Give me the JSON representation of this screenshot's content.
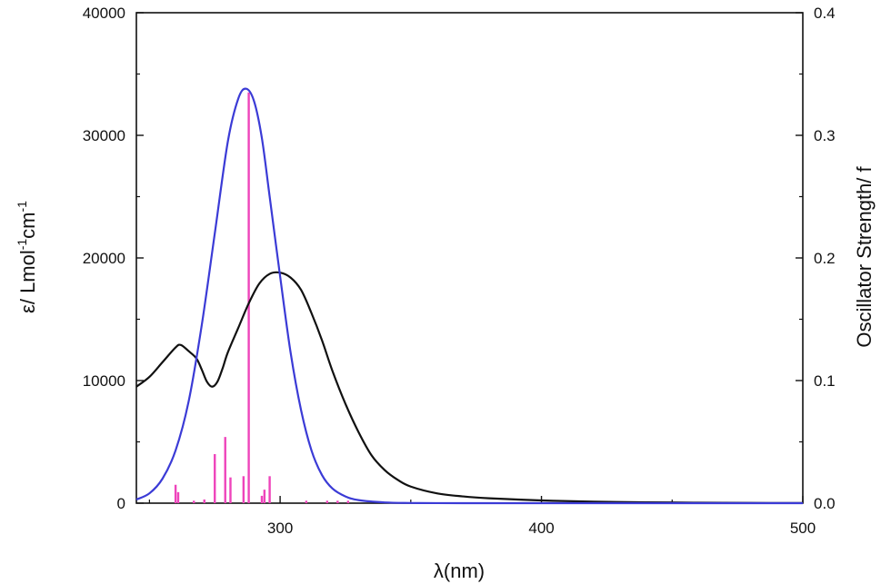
{
  "chart_data": {
    "type": "line",
    "title": "",
    "xlabel": "λ(nm)",
    "ylabel_left": "ε/ Lmol-1cm-1",
    "ylabel_right": "Oscillator Strength/ f",
    "xlim": [
      245,
      500
    ],
    "ylim_left": [
      0,
      40000
    ],
    "ylim_right": [
      0.0,
      0.4
    ],
    "x_ticks": [
      "300",
      "400",
      "500"
    ],
    "y_left_ticks": [
      "0",
      "10000",
      "20000",
      "30000",
      "40000"
    ],
    "y_right_ticks": [
      "0.0",
      "0.1",
      "0.2",
      "0.3",
      "0.4"
    ],
    "grid": false,
    "series": [
      {
        "color": "#111111",
        "axis": "left",
        "x": [
          245,
          250,
          255,
          260,
          262,
          265,
          268,
          270,
          272,
          274,
          276,
          278,
          280,
          284,
          288,
          292,
          296,
          300,
          304,
          308,
          312,
          316,
          320,
          325,
          330,
          335,
          340,
          345,
          350,
          360,
          370,
          380,
          400,
          420,
          440,
          460,
          480,
          500
        ],
        "y": [
          9500,
          10300,
          11500,
          12700,
          12900,
          12400,
          11800,
          10900,
          9900,
          9500,
          9900,
          11000,
          12300,
          14300,
          16300,
          17900,
          18700,
          18800,
          18400,
          17400,
          15500,
          13300,
          10800,
          8100,
          5800,
          3900,
          2700,
          1900,
          1350,
          800,
          550,
          400,
          220,
          120,
          70,
          40,
          20,
          10
        ]
      },
      {
        "color": "#3b3bd6",
        "axis": "left",
        "x": [
          245,
          250,
          255,
          260,
          265,
          270,
          275,
          280,
          284,
          287,
          290,
          293,
          296,
          300,
          304,
          308,
          312,
          316,
          320,
          325,
          330,
          340,
          350,
          360,
          380,
          400,
          450,
          500
        ],
        "y": [
          300,
          800,
          2000,
          4300,
          8300,
          14500,
          22000,
          29500,
          33000,
          33800,
          32800,
          29800,
          25000,
          18500,
          12300,
          7600,
          4300,
          2300,
          1200,
          550,
          250,
          60,
          15,
          5,
          0,
          0,
          0,
          0
        ]
      }
    ],
    "sticks": {
      "color": "#ee44bb",
      "axis": "right",
      "x": [
        260,
        261,
        267,
        271,
        275,
        279,
        281,
        286,
        288,
        293,
        294,
        296,
        310,
        318,
        322,
        326
      ],
      "y": [
        0.015,
        0.009,
        0.002,
        0.003,
        0.04,
        0.054,
        0.021,
        0.022,
        0.335,
        0.006,
        0.011,
        0.022,
        0.002,
        0.002,
        0.002,
        0.002
      ]
    }
  }
}
